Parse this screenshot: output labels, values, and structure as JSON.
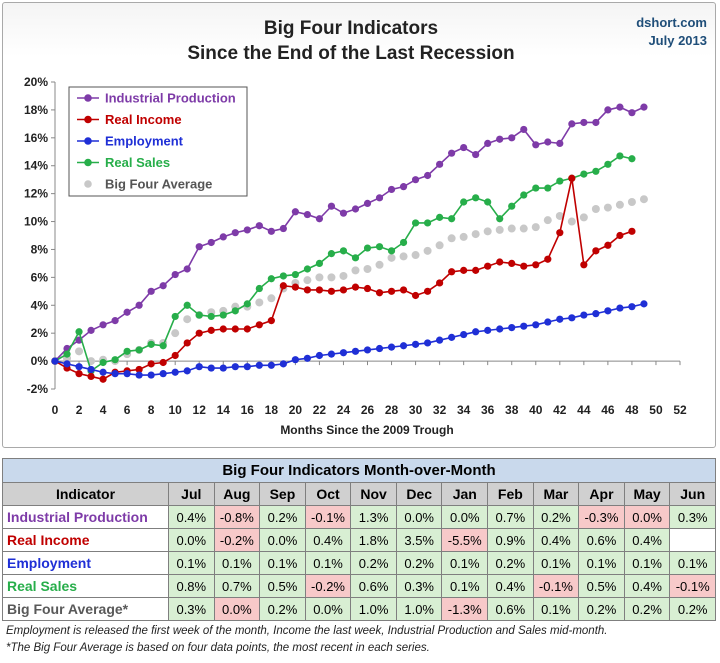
{
  "chart_data": {
    "type": "line",
    "title": "Big Four Indicators",
    "subtitle": "Since the End of the Last Recession",
    "source": "dshort.com",
    "date": "July 2013",
    "xlabel": "Months Since the 2009 Trough",
    "xlim": [
      0,
      52
    ],
    "ylim": [
      -2,
      20
    ],
    "x_ticks": [
      0,
      2,
      4,
      6,
      8,
      10,
      12,
      14,
      16,
      18,
      20,
      22,
      24,
      26,
      28,
      30,
      32,
      34,
      36,
      38,
      40,
      42,
      44,
      46,
      48,
      50,
      52
    ],
    "y_ticks": [
      "-2%",
      "0%",
      "2%",
      "4%",
      "6%",
      "8%",
      "10%",
      "12%",
      "14%",
      "16%",
      "18%",
      "20%"
    ],
    "grid": false,
    "legend_position": "top-left",
    "series": [
      {
        "name": "Industrial Production",
        "color": "#7e3ba8",
        "values": [
          0.0,
          0.9,
          1.5,
          2.2,
          2.6,
          2.9,
          3.5,
          4.0,
          5.0,
          5.4,
          6.2,
          6.6,
          8.2,
          8.5,
          8.9,
          9.2,
          9.4,
          9.7,
          9.3,
          9.5,
          10.7,
          10.5,
          10.2,
          11.1,
          10.6,
          10.9,
          11.3,
          11.7,
          12.3,
          12.5,
          13.0,
          13.3,
          14.1,
          14.9,
          15.3,
          14.8,
          15.6,
          15.9,
          16.0,
          16.6,
          15.5,
          15.7,
          15.6,
          17.0,
          17.1,
          17.1,
          18.0,
          18.2,
          17.8,
          18.2
        ]
      },
      {
        "name": "Real Income",
        "color": "#c00000",
        "values": [
          0.0,
          -0.5,
          -0.9,
          -1.1,
          -1.3,
          -0.8,
          -0.7,
          -0.6,
          -0.2,
          -0.1,
          0.4,
          1.3,
          2.0,
          2.2,
          2.3,
          2.3,
          2.3,
          2.6,
          2.9,
          5.4,
          5.3,
          5.1,
          5.1,
          5.0,
          5.1,
          5.3,
          5.2,
          4.9,
          5.0,
          5.1,
          4.7,
          5.0,
          5.6,
          6.4,
          6.5,
          6.5,
          6.8,
          7.1,
          7.0,
          6.8,
          6.9,
          7.3,
          9.2,
          13.1,
          6.9,
          7.9,
          8.3,
          9.0,
          9.3
        ]
      },
      {
        "name": "Employment",
        "color": "#1f2fd6",
        "values": [
          0.0,
          -0.2,
          -0.4,
          -0.6,
          -0.8,
          -0.9,
          -0.9,
          -1.0,
          -1.0,
          -0.9,
          -0.8,
          -0.7,
          -0.4,
          -0.5,
          -0.5,
          -0.4,
          -0.4,
          -0.3,
          -0.3,
          -0.2,
          0.1,
          0.2,
          0.4,
          0.5,
          0.6,
          0.7,
          0.8,
          0.9,
          1.0,
          1.1,
          1.2,
          1.3,
          1.5,
          1.7,
          1.9,
          2.1,
          2.2,
          2.3,
          2.4,
          2.5,
          2.6,
          2.8,
          3.0,
          3.1,
          3.3,
          3.4,
          3.6,
          3.8,
          3.9,
          4.1
        ]
      },
      {
        "name": "Real Sales",
        "color": "#27ae4a",
        "values": [
          0.0,
          0.5,
          2.1,
          -0.7,
          -0.1,
          0.1,
          0.7,
          0.8,
          1.2,
          1.1,
          3.2,
          4.0,
          3.3,
          3.2,
          3.3,
          3.6,
          4.1,
          5.2,
          5.9,
          6.1,
          6.2,
          6.6,
          7.0,
          7.7,
          7.9,
          7.4,
          8.1,
          8.2,
          7.9,
          8.5,
          9.9,
          9.9,
          10.3,
          10.2,
          11.4,
          11.7,
          11.4,
          10.2,
          11.1,
          11.9,
          12.4,
          12.4,
          12.9,
          13.1,
          13.4,
          13.6,
          14.1,
          14.7,
          14.5
        ]
      },
      {
        "name": "Big Four Average",
        "color": "#c8c8c8",
        "values": [
          0.0,
          0.2,
          0.7,
          0.0,
          0.1,
          0.0,
          0.5,
          0.8,
          1.3,
          1.3,
          2.0,
          3.0,
          3.3,
          3.5,
          3.6,
          3.9,
          3.9,
          4.2,
          4.5,
          5.2,
          5.6,
          5.8,
          6.0,
          6.0,
          6.1,
          6.5,
          6.6,
          6.9,
          7.4,
          7.5,
          7.6,
          7.9,
          8.3,
          8.8,
          8.9,
          9.1,
          9.3,
          9.4,
          9.5,
          9.5,
          9.6,
          10.1,
          10.4,
          10.0,
          10.3,
          10.9,
          11.0,
          11.2,
          11.4,
          11.6
        ]
      }
    ]
  },
  "table": {
    "title": "Big Four Indicators Month-over-Month",
    "header_label": "Indicator",
    "months": [
      "Jul",
      "Aug",
      "Sep",
      "Oct",
      "Nov",
      "Dec",
      "Jan",
      "Feb",
      "Mar",
      "Apr",
      "May",
      "Jun"
    ],
    "rows": [
      {
        "name": "Industrial Production",
        "color": "#7e3ba8",
        "values": [
          "0.4%",
          "-0.8%",
          "0.2%",
          "-0.1%",
          "1.3%",
          "0.0%",
          "0.0%",
          "0.7%",
          "0.2%",
          "-0.3%",
          "0.0%",
          "0.3%"
        ],
        "shade": [
          "pos",
          "neg",
          "pos",
          "neg",
          "pos",
          "pos",
          "pos",
          "pos",
          "pos",
          "neg",
          "neg",
          "pos"
        ]
      },
      {
        "name": "Real Income",
        "color": "#c00000",
        "values": [
          "0.0%",
          "-0.2%",
          "0.0%",
          "0.4%",
          "1.8%",
          "3.5%",
          "-5.5%",
          "0.9%",
          "0.4%",
          "0.6%",
          "0.4%",
          ""
        ],
        "shade": [
          "pos",
          "neg",
          "pos",
          "pos",
          "pos",
          "pos",
          "neg",
          "pos",
          "pos",
          "pos",
          "pos",
          "empty"
        ]
      },
      {
        "name": "Employment",
        "color": "#1f2fd6",
        "values": [
          "0.1%",
          "0.1%",
          "0.1%",
          "0.1%",
          "0.2%",
          "0.2%",
          "0.1%",
          "0.2%",
          "0.1%",
          "0.1%",
          "0.1%",
          "0.1%"
        ],
        "shade": [
          "pos",
          "pos",
          "pos",
          "pos",
          "pos",
          "pos",
          "pos",
          "pos",
          "pos",
          "pos",
          "pos",
          "pos"
        ]
      },
      {
        "name": "Real Sales",
        "color": "#27ae4a",
        "values": [
          "0.8%",
          "0.7%",
          "0.5%",
          "-0.2%",
          "0.6%",
          "0.3%",
          "0.1%",
          "0.4%",
          "-0.1%",
          "0.5%",
          "0.4%",
          "-0.1%"
        ],
        "shade": [
          "pos",
          "pos",
          "pos",
          "neg",
          "pos",
          "pos",
          "pos",
          "pos",
          "neg",
          "pos",
          "pos",
          "neg"
        ]
      },
      {
        "name": "Big Four Average*",
        "color": "#595959",
        "values": [
          "0.3%",
          "0.0%",
          "0.2%",
          "0.0%",
          "1.0%",
          "1.0%",
          "-1.3%",
          "0.6%",
          "0.1%",
          "0.2%",
          "0.2%",
          "0.2%"
        ],
        "shade": [
          "pos",
          "neg",
          "pos",
          "pos",
          "pos",
          "pos",
          "neg",
          "pos",
          "pos",
          "pos",
          "pos",
          "pos"
        ]
      }
    ]
  },
  "notes": {
    "line1": "Employment is released the first week of the month, Income the last week, Industrial Production and Sales mid-month.",
    "line2": "*The Big Four Average is based on four data points, the most recent in each series."
  }
}
